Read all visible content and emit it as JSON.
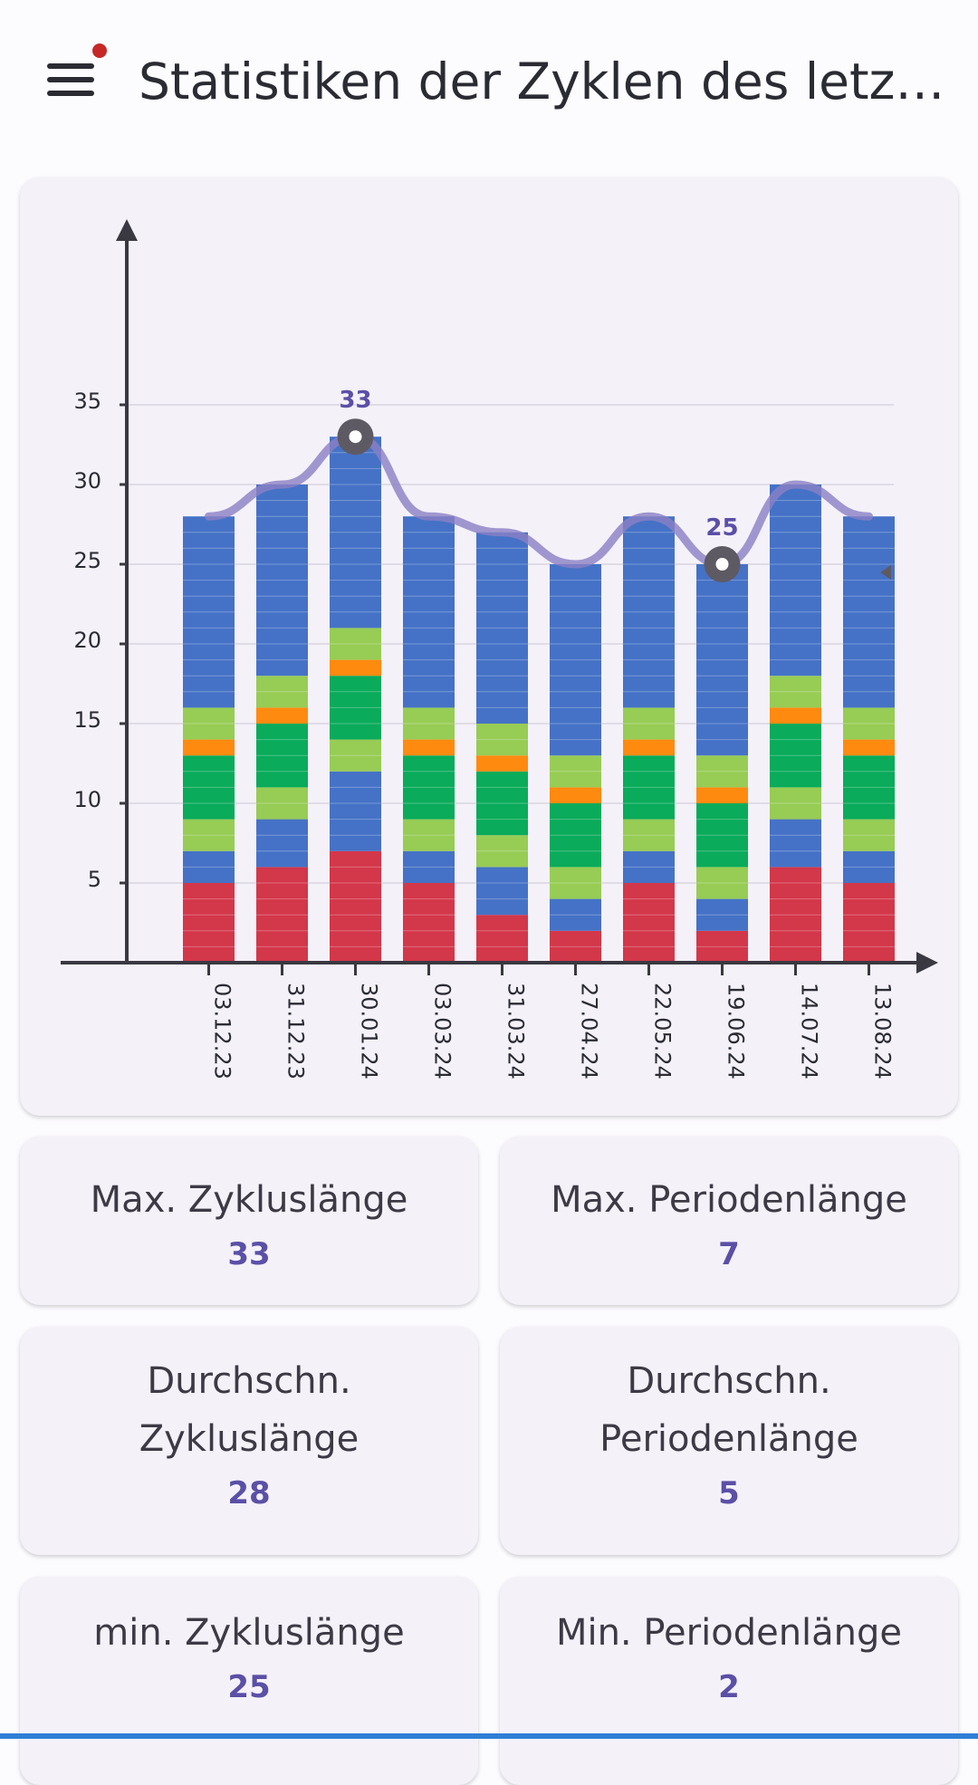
{
  "header": {
    "title": "Statistiken der Zyklen des letzt..."
  },
  "colors": {
    "period": "#d3374a",
    "blue": "#4572c6",
    "light_green": "#97cc55",
    "green": "#0aab5a",
    "orange": "#ff8a10",
    "line": "#8b80c4",
    "accent": "#5b4fa6"
  },
  "chart_data": {
    "type": "bar",
    "stacked": true,
    "categories": [
      "03.12.23",
      "31.12.23",
      "30.01.24",
      "03.03.24",
      "31.03.24",
      "27.04.24",
      "22.05.24",
      "19.06.24",
      "14.07.24",
      "13.08.24"
    ],
    "ylim": [
      0,
      35
    ],
    "yticks": [
      5,
      10,
      15,
      20,
      25,
      30,
      35
    ],
    "grid": true,
    "segments": [
      [
        {
          "color": "period",
          "len": 5
        },
        {
          "color": "blue",
          "len": 2
        },
        {
          "color": "light_green",
          "len": 2
        },
        {
          "color": "green",
          "len": 4
        },
        {
          "color": "orange",
          "len": 1
        },
        {
          "color": "light_green",
          "len": 2
        },
        {
          "color": "blue",
          "len": 12
        }
      ],
      [
        {
          "color": "period",
          "len": 6
        },
        {
          "color": "blue",
          "len": 3
        },
        {
          "color": "light_green",
          "len": 2
        },
        {
          "color": "green",
          "len": 4
        },
        {
          "color": "orange",
          "len": 1
        },
        {
          "color": "light_green",
          "len": 2
        },
        {
          "color": "blue",
          "len": 12
        }
      ],
      [
        {
          "color": "period",
          "len": 7
        },
        {
          "color": "blue",
          "len": 5
        },
        {
          "color": "light_green",
          "len": 2
        },
        {
          "color": "green",
          "len": 4
        },
        {
          "color": "orange",
          "len": 1
        },
        {
          "color": "light_green",
          "len": 2
        },
        {
          "color": "blue",
          "len": 12
        }
      ],
      [
        {
          "color": "period",
          "len": 5
        },
        {
          "color": "blue",
          "len": 2
        },
        {
          "color": "light_green",
          "len": 2
        },
        {
          "color": "green",
          "len": 4
        },
        {
          "color": "orange",
          "len": 1
        },
        {
          "color": "light_green",
          "len": 2
        },
        {
          "color": "blue",
          "len": 12
        }
      ],
      [
        {
          "color": "period",
          "len": 3
        },
        {
          "color": "blue",
          "len": 3
        },
        {
          "color": "light_green",
          "len": 2
        },
        {
          "color": "green",
          "len": 4
        },
        {
          "color": "orange",
          "len": 1
        },
        {
          "color": "light_green",
          "len": 2
        },
        {
          "color": "blue",
          "len": 12
        }
      ],
      [
        {
          "color": "period",
          "len": 2
        },
        {
          "color": "blue",
          "len": 2
        },
        {
          "color": "light_green",
          "len": 2
        },
        {
          "color": "green",
          "len": 4
        },
        {
          "color": "orange",
          "len": 1
        },
        {
          "color": "light_green",
          "len": 2
        },
        {
          "color": "blue",
          "len": 12
        }
      ],
      [
        {
          "color": "period",
          "len": 5
        },
        {
          "color": "blue",
          "len": 2
        },
        {
          "color": "light_green",
          "len": 2
        },
        {
          "color": "green",
          "len": 4
        },
        {
          "color": "orange",
          "len": 1
        },
        {
          "color": "light_green",
          "len": 2
        },
        {
          "color": "blue",
          "len": 12
        }
      ],
      [
        {
          "color": "period",
          "len": 2
        },
        {
          "color": "blue",
          "len": 2
        },
        {
          "color": "light_green",
          "len": 2
        },
        {
          "color": "green",
          "len": 4
        },
        {
          "color": "orange",
          "len": 1
        },
        {
          "color": "light_green",
          "len": 2
        },
        {
          "color": "blue",
          "len": 12
        }
      ],
      [
        {
          "color": "period",
          "len": 6
        },
        {
          "color": "blue",
          "len": 3
        },
        {
          "color": "light_green",
          "len": 2
        },
        {
          "color": "green",
          "len": 4
        },
        {
          "color": "orange",
          "len": 1
        },
        {
          "color": "light_green",
          "len": 2
        },
        {
          "color": "blue",
          "len": 12
        }
      ],
      [
        {
          "color": "period",
          "len": 5
        },
        {
          "color": "blue",
          "len": 2
        },
        {
          "color": "light_green",
          "len": 2
        },
        {
          "color": "green",
          "len": 4
        },
        {
          "color": "orange",
          "len": 1
        },
        {
          "color": "light_green",
          "len": 2
        },
        {
          "color": "blue",
          "len": 12
        }
      ]
    ],
    "line_values": [
      28,
      30,
      33,
      28,
      27,
      25,
      28,
      25,
      30,
      28
    ],
    "highlighted_points": [
      {
        "index": 2,
        "label": "33"
      },
      {
        "index": 7,
        "label": "25"
      }
    ]
  },
  "stats": {
    "max_cycle": {
      "label": "Max. Zykluslänge",
      "value": "33"
    },
    "max_period": {
      "label": "Max. Periodenlänge",
      "value": "7"
    },
    "avg_cycle": {
      "label": "Durchschn. Zykluslänge",
      "value": "28"
    },
    "avg_period": {
      "label": "Durchschn. Periodenlänge",
      "value": "5"
    },
    "min_cycle": {
      "label": "min. Zykluslänge",
      "value": "25"
    },
    "min_period": {
      "label": "Min. Periodenlänge",
      "value": "2"
    }
  }
}
